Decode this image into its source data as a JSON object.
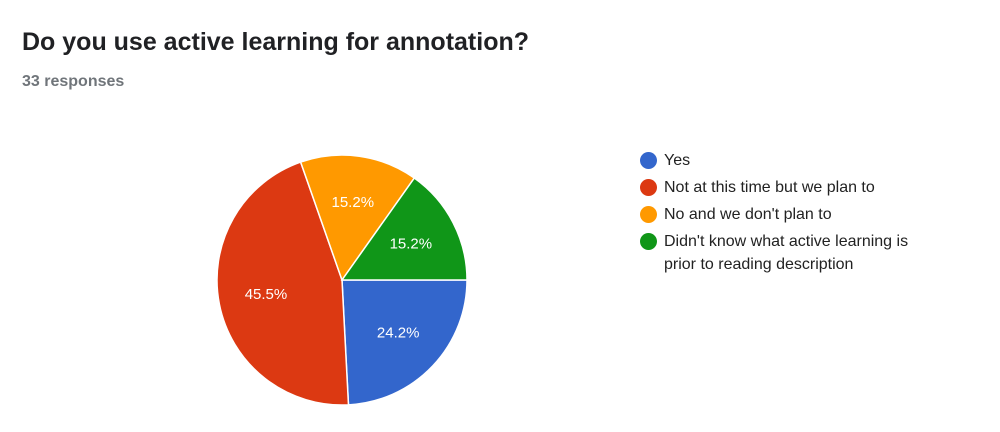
{
  "chart_data": {
    "type": "pie",
    "title": "Do you use active learning for annotation?",
    "subtitle": "33 responses",
    "categories": [
      "Yes",
      "Not at this time but we plan to",
      "No and we don't plan to",
      "Didn't know what active learning is prior to reading description"
    ],
    "values": [
      24.2,
      45.5,
      15.2,
      15.2
    ],
    "value_labels": [
      "24.2%",
      "45.5%",
      "15.2%",
      "15.2%"
    ],
    "colors": [
      "#3366cc",
      "#dc3912",
      "#ff9900",
      "#109618"
    ],
    "legend": "right"
  }
}
